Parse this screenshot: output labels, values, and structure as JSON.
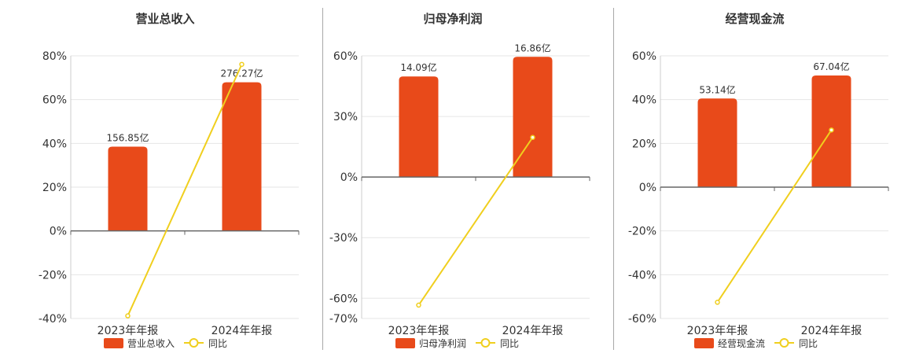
{
  "chart_data": [
    {
      "type": "bar",
      "title": "营业总收入",
      "categories": [
        "2023年年报",
        "2024年年报"
      ],
      "ylim": [
        -40,
        80
      ],
      "yticks": [
        80,
        60,
        40,
        20,
        0,
        -20,
        -40
      ],
      "ytick_labels": [
        "80%",
        "60%",
        "40%",
        "20%",
        "0%",
        "-20%",
        "-40%"
      ],
      "series": [
        {
          "name": "营业总收入",
          "kind": "bar",
          "values": [
            38.5,
            67.9
          ],
          "labels": [
            "156.85亿",
            "276.27亿"
          ],
          "color": "#e84a1a"
        },
        {
          "name": "同比",
          "kind": "line",
          "values": [
            -38.8,
            76.1
          ],
          "color": "#f0cf1e"
        }
      ],
      "grid": true,
      "legend": "bottom"
    },
    {
      "type": "bar",
      "title": "归母净利润",
      "categories": [
        "2023年年报",
        "2024年年报"
      ],
      "ylim": [
        -70,
        60
      ],
      "yticks": [
        60,
        30,
        0,
        -30,
        -60,
        -70
      ],
      "ytick_labels": [
        "60%",
        "30%",
        "0%",
        "-30%",
        "-60%",
        "-70%"
      ],
      "series": [
        {
          "name": "归母净利润",
          "kind": "bar",
          "values": [
            49.8,
            59.5
          ],
          "labels": [
            "14.09亿",
            "16.86亿"
          ],
          "color": "#e84a1a"
        },
        {
          "name": "同比",
          "kind": "line",
          "values": [
            -63.4,
            19.6
          ],
          "color": "#f0cf1e"
        }
      ],
      "grid": true,
      "legend": "bottom"
    },
    {
      "type": "bar",
      "title": "经营现金流",
      "categories": [
        "2023年年报",
        "2024年年报"
      ],
      "ylim": [
        -60,
        60
      ],
      "yticks": [
        60,
        40,
        20,
        0,
        -20,
        -40,
        -60
      ],
      "ytick_labels": [
        "60%",
        "40%",
        "20%",
        "0%",
        "-20%",
        "-40%",
        "-60%"
      ],
      "series": [
        {
          "name": "经营现金流",
          "kind": "bar",
          "values": [
            40.5,
            51.0
          ],
          "labels": [
            "53.14亿",
            "67.04亿"
          ],
          "color": "#e84a1a"
        },
        {
          "name": "同比",
          "kind": "line",
          "values": [
            -52.6,
            26.1
          ],
          "color": "#f0cf1e"
        }
      ],
      "grid": true,
      "legend": "bottom"
    }
  ]
}
